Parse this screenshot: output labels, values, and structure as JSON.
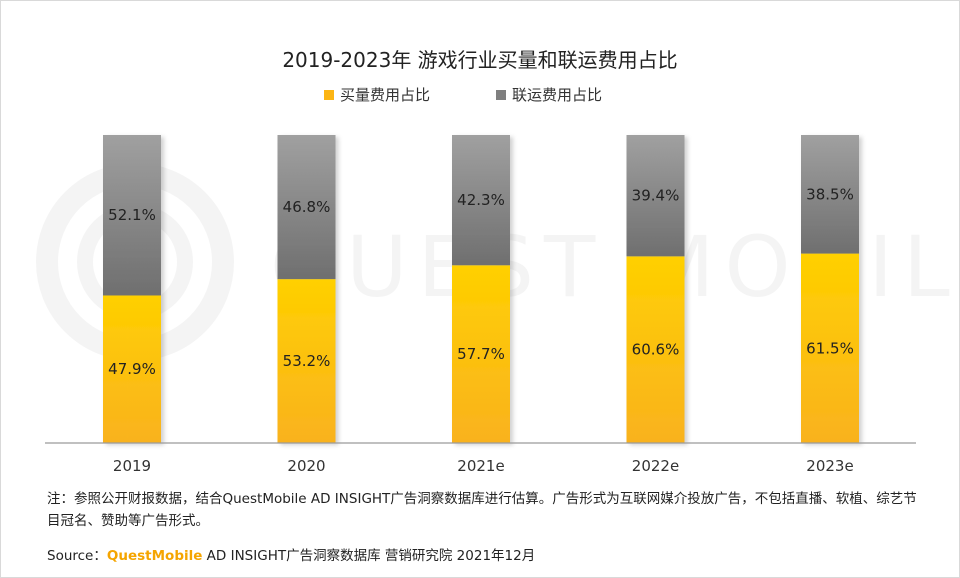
{
  "chart_data": {
    "type": "bar",
    "stacked": true,
    "title": "2019-2023年 游戏行业买量和联运费用占比",
    "categories": [
      "2019",
      "2020",
      "2021e",
      "2022e",
      "2023e"
    ],
    "series": [
      {
        "name": "买量费用占比",
        "values": [
          47.9,
          53.2,
          57.7,
          60.6,
          61.5
        ],
        "color": "#fcb514"
      },
      {
        "name": "联运费用占比",
        "values": [
          52.1,
          46.8,
          42.3,
          39.4,
          38.5
        ],
        "color": "#7f7f7f"
      }
    ],
    "ylim": [
      0,
      100
    ],
    "value_suffix": "%",
    "legend": "top-center",
    "grid": false
  },
  "watermark": "QUEST MOBILE",
  "footnote": "注：参照公开财报数据，结合QuestMobile AD INSIGHT广告洞察数据库进行估算。广告形式为互联网媒介投放广告，不包括直播、软植、综艺节目冠名、赞助等广告形式。",
  "source": {
    "prefix": "Source：",
    "brand": "QuestMobile",
    "text": " AD INSIGHT广告洞察数据库  营销研究院 2021年12月"
  }
}
